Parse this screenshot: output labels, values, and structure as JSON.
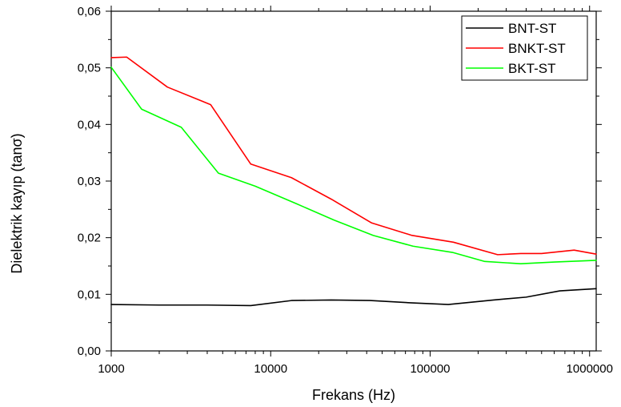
{
  "chart_data": {
    "type": "line",
    "title": "",
    "xlabel": "Frekans (Hz)",
    "ylabel": "Dielektrik kayıp (tanσ)",
    "x_scale": "log",
    "xlim": [
      1000,
      1100000
    ],
    "ylim": [
      0,
      0.06
    ],
    "x_ticks": [
      1000,
      10000,
      100000,
      1000000
    ],
    "x_tick_labels": [
      "1000",
      "10000",
      "100000",
      "1000000"
    ],
    "y_ticks": [
      0,
      0.01,
      0.02,
      0.03,
      0.04,
      0.05,
      0.06
    ],
    "y_tick_labels": [
      "0,00",
      "0,01",
      "0,02",
      "0,03",
      "0,04",
      "0,05",
      "0,06"
    ],
    "grid": false,
    "legend_position": "top-right",
    "series": [
      {
        "name": "BNT-ST",
        "color": "#000000",
        "x": [
          1000,
          2000,
          4000,
          7500,
          13500,
          24000,
          42000,
          75000,
          130000,
          250000,
          400000,
          650000,
          1100000
        ],
        "y": [
          0.0082,
          0.0081,
          0.0081,
          0.008,
          0.0089,
          0.009,
          0.0089,
          0.0085,
          0.0082,
          0.009,
          0.0095,
          0.0106,
          0.011
        ]
      },
      {
        "name": "BNKT-ST",
        "color": "#ff0000",
        "x": [
          1000,
          1250,
          2250,
          4200,
          7500,
          13500,
          24000,
          43000,
          77000,
          140000,
          265000,
          370000,
          500000,
          800000,
          1100000
        ],
        "y": [
          0.0518,
          0.0519,
          0.0466,
          0.0435,
          0.033,
          0.0306,
          0.0268,
          0.0226,
          0.0204,
          0.0192,
          0.017,
          0.0172,
          0.0172,
          0.0178,
          0.0171
        ]
      },
      {
        "name": "BKT-ST",
        "color": "#00ff00",
        "x": [
          1000,
          1550,
          2750,
          4700,
          8000,
          14500,
          25000,
          44000,
          78000,
          138000,
          220000,
          370000,
          600000,
          1100000
        ],
        "y": [
          0.0501,
          0.0427,
          0.0395,
          0.0314,
          0.0291,
          0.026,
          0.0231,
          0.0204,
          0.0185,
          0.0174,
          0.0158,
          0.0154,
          0.0157,
          0.016
        ]
      }
    ]
  }
}
